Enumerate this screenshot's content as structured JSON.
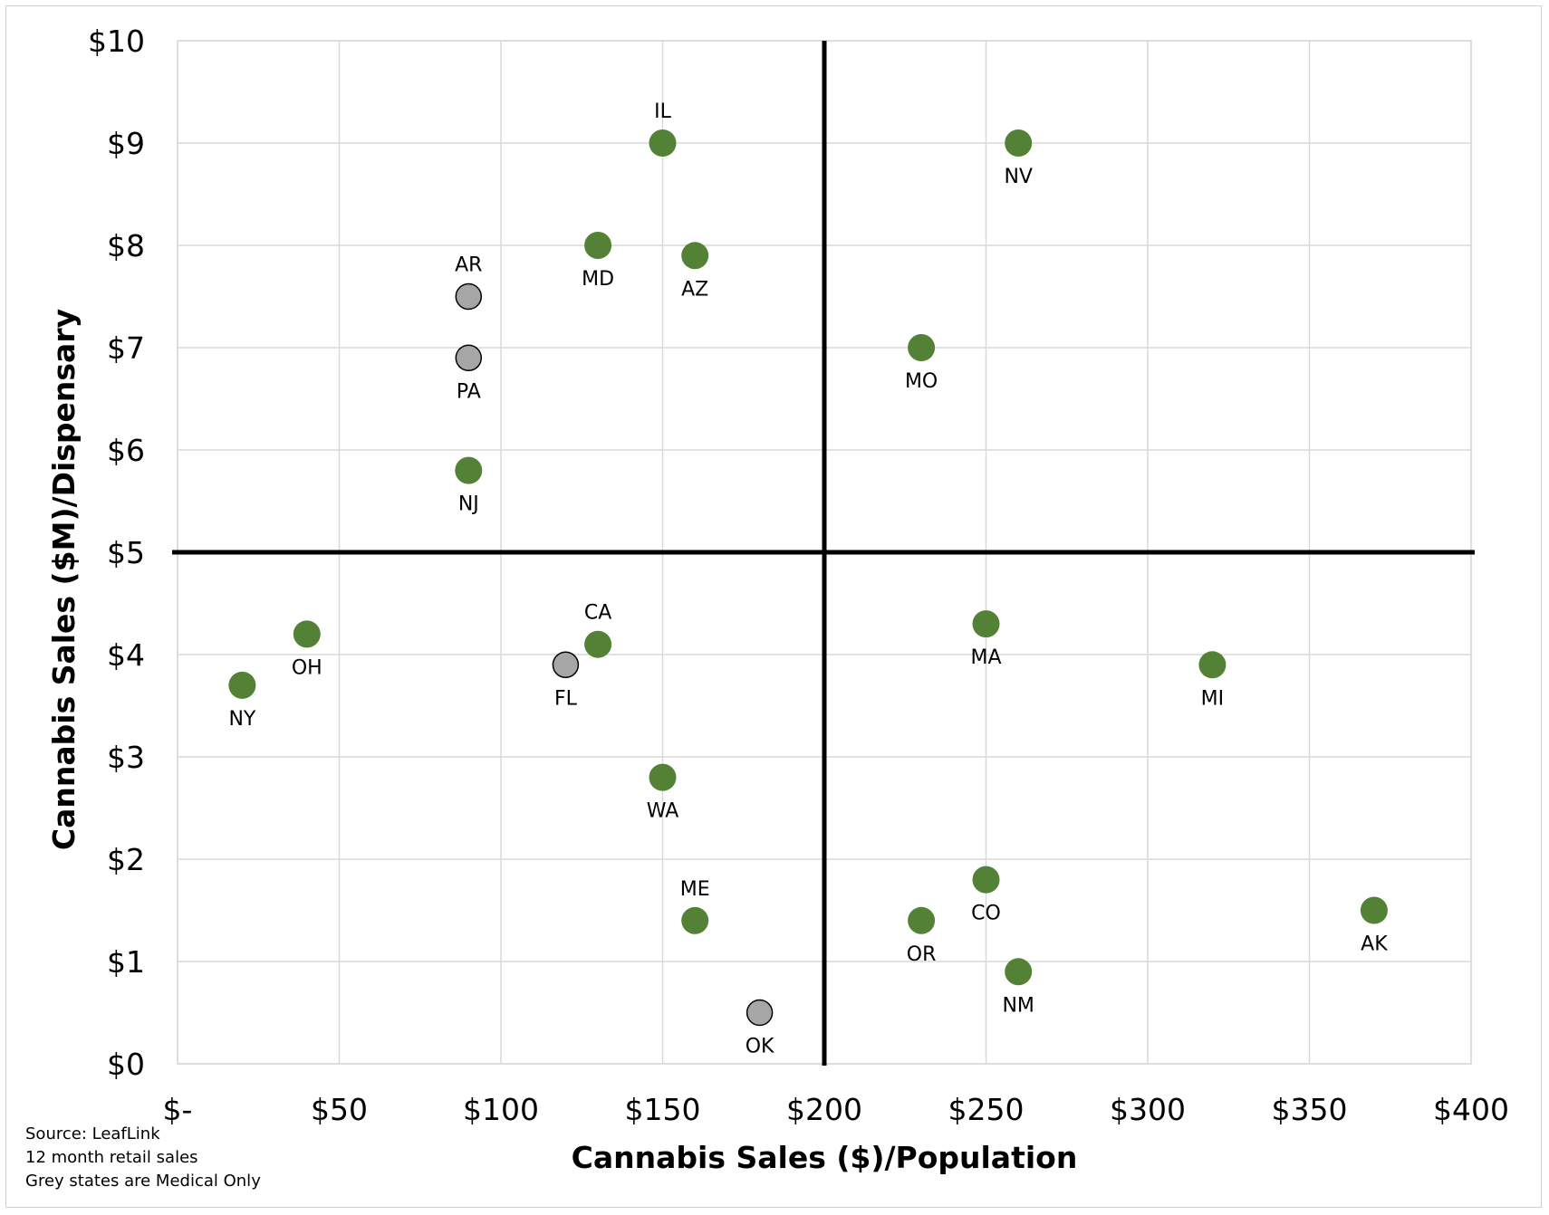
{
  "chart_data": {
    "type": "scatter",
    "xlabel": "Cannabis Sales ($)/Population",
    "ylabel": "Cannabis Sales ($M)/Dispensary",
    "xlim": [
      0,
      400
    ],
    "ylim": [
      0,
      10
    ],
    "x_ticks": [
      0,
      50,
      100,
      150,
      200,
      250,
      300,
      350,
      400
    ],
    "x_tick_labels": [
      "$-",
      "$50",
      "$100",
      "$150",
      "$200",
      "$250",
      "$300",
      "$350",
      "$400"
    ],
    "y_ticks": [
      0,
      1,
      2,
      3,
      4,
      5,
      6,
      7,
      8,
      9,
      10
    ],
    "y_tick_labels": [
      "$0",
      "$1",
      "$2",
      "$3",
      "$4",
      "$5",
      "$6",
      "$7",
      "$8",
      "$9",
      "$10"
    ],
    "grid": true,
    "quadrant_lines": {
      "x": 200,
      "y": 5
    },
    "colors": {
      "recreational": "#538135",
      "medical": "#a6a6a6"
    },
    "points": [
      {
        "label": "IL",
        "x": 150,
        "y": 9.0,
        "group": "recreational",
        "label_pos": "above"
      },
      {
        "label": "NV",
        "x": 260,
        "y": 9.0,
        "group": "recreational",
        "label_pos": "below"
      },
      {
        "label": "MD",
        "x": 130,
        "y": 8.0,
        "group": "recreational",
        "label_pos": "below"
      },
      {
        "label": "AZ",
        "x": 160,
        "y": 7.9,
        "group": "recreational",
        "label_pos": "below"
      },
      {
        "label": "AR",
        "x": 90,
        "y": 7.5,
        "group": "medical",
        "label_pos": "above"
      },
      {
        "label": "PA",
        "x": 90,
        "y": 6.9,
        "group": "medical",
        "label_pos": "below"
      },
      {
        "label": "MO",
        "x": 230,
        "y": 7.0,
        "group": "recreational",
        "label_pos": "below"
      },
      {
        "label": "NJ",
        "x": 90,
        "y": 5.8,
        "group": "recreational",
        "label_pos": "below"
      },
      {
        "label": "CA",
        "x": 130,
        "y": 4.1,
        "group": "recreational",
        "label_pos": "above"
      },
      {
        "label": "OH",
        "x": 40,
        "y": 4.2,
        "group": "recreational",
        "label_pos": "below"
      },
      {
        "label": "NY",
        "x": 20,
        "y": 3.7,
        "group": "recreational",
        "label_pos": "below"
      },
      {
        "label": "FL",
        "x": 120,
        "y": 3.9,
        "group": "medical",
        "label_pos": "below"
      },
      {
        "label": "MA",
        "x": 250,
        "y": 4.3,
        "group": "recreational",
        "label_pos": "below"
      },
      {
        "label": "MI",
        "x": 320,
        "y": 3.9,
        "group": "recreational",
        "label_pos": "below"
      },
      {
        "label": "WA",
        "x": 150,
        "y": 2.8,
        "group": "recreational",
        "label_pos": "below"
      },
      {
        "label": "ME",
        "x": 160,
        "y": 1.4,
        "group": "recreational",
        "label_pos": "above"
      },
      {
        "label": "CO",
        "x": 250,
        "y": 1.8,
        "group": "recreational",
        "label_pos": "below"
      },
      {
        "label": "OR",
        "x": 230,
        "y": 1.4,
        "group": "recreational",
        "label_pos": "below"
      },
      {
        "label": "AK",
        "x": 370,
        "y": 1.5,
        "group": "recreational",
        "label_pos": "below"
      },
      {
        "label": "NM",
        "x": 260,
        "y": 0.9,
        "group": "recreational",
        "label_pos": "below"
      },
      {
        "label": "OK",
        "x": 180,
        "y": 0.5,
        "group": "medical",
        "label_pos": "below"
      }
    ]
  },
  "notes": [
    "Source: LeafLink",
    "12 month retail sales",
    "Grey states are Medical Only"
  ]
}
